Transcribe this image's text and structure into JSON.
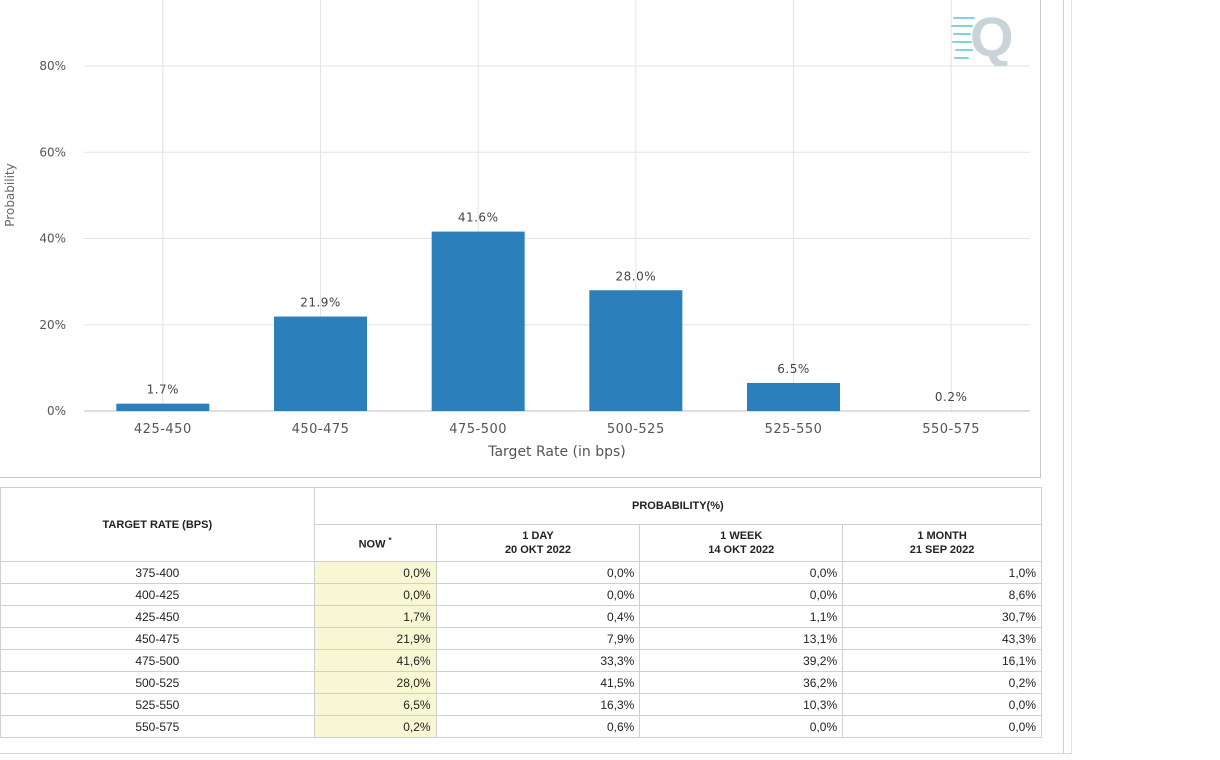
{
  "chart_data": {
    "type": "bar",
    "categories": [
      "425-450",
      "450-475",
      "475-500",
      "500-525",
      "525-550",
      "550-575"
    ],
    "values": [
      1.7,
      21.9,
      41.6,
      28.0,
      6.5,
      0.2
    ],
    "data_labels": [
      "1.7%",
      "21.9%",
      "41.6%",
      "28.0%",
      "6.5%",
      "0.2%"
    ],
    "xlabel": "Target Rate (in bps)",
    "ylabel": "Probability",
    "yticks": [
      "0%",
      "20%",
      "40%",
      "60%",
      "80%"
    ],
    "ytick_values": [
      0,
      20,
      40,
      60,
      80
    ],
    "ylim": [
      0,
      80
    ],
    "grid": true,
    "bar_color": "#2b7fba"
  },
  "logo": {
    "letter": "Q",
    "color": "#c9d3da",
    "accent": "#7fd3e6"
  },
  "table": {
    "rate_header": "TARGET RATE (BPS)",
    "prob_header": "PROBABILITY(%)",
    "now_label": "NOW",
    "now_mark": "*",
    "columns": [
      {
        "line1": "1 DAY",
        "line2": "20 OKT 2022"
      },
      {
        "line1": "1 WEEK",
        "line2": "14 OKT 2022"
      },
      {
        "line1": "1 MONTH",
        "line2": "21 SEP 2022"
      }
    ],
    "rows": [
      {
        "rate": "375-400",
        "now": "0,0%",
        "day": "0,0%",
        "week": "0,0%",
        "month": "1,0%"
      },
      {
        "rate": "400-425",
        "now": "0,0%",
        "day": "0,0%",
        "week": "0,0%",
        "month": "8,6%"
      },
      {
        "rate": "425-450",
        "now": "1,7%",
        "day": "0,4%",
        "week": "1,1%",
        "month": "30,7%"
      },
      {
        "rate": "450-475",
        "now": "21,9%",
        "day": "7,9%",
        "week": "13,1%",
        "month": "43,3%"
      },
      {
        "rate": "475-500",
        "now": "41,6%",
        "day": "33,3%",
        "week": "39,2%",
        "month": "16,1%"
      },
      {
        "rate": "500-525",
        "now": "28,0%",
        "day": "41,5%",
        "week": "36,2%",
        "month": "0,2%"
      },
      {
        "rate": "525-550",
        "now": "6,5%",
        "day": "16,3%",
        "week": "10,3%",
        "month": "0,0%"
      },
      {
        "rate": "550-575",
        "now": "0,2%",
        "day": "0,6%",
        "week": "0,0%",
        "month": "0,0%"
      }
    ]
  }
}
